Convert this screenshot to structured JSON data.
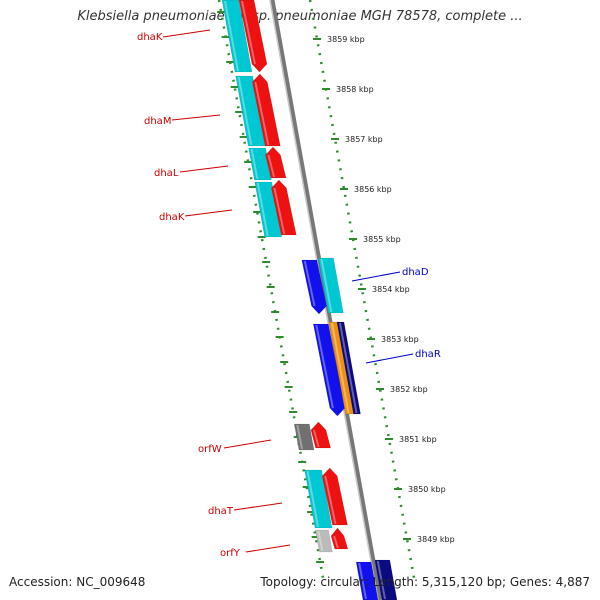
{
  "title": "Klebsiella pneumoniae subsp. pneumoniae MGH 78578, complete ...",
  "accession": "Accession: NC_009648",
  "summary": "Topology: circular; Length: 5,315,120 bp; Genes: 4,887",
  "colors": {
    "backbone": "#999999",
    "dotted_track": "#2e8b2e",
    "label_left": "#cc0000",
    "label_right": "#0000cc",
    "cyan": "#00c8d2",
    "red": "#ee1111",
    "blue": "#1111ee",
    "navy": "#0b0b80",
    "orange": "#f09010",
    "gray": "#707070",
    "light_gray": "#bbbbbb"
  },
  "scale": {
    "unit": "kbp",
    "ticks": [
      {
        "kbp": 3859,
        "label": "3859 kbp"
      },
      {
        "kbp": 3858,
        "label": "3858 kbp"
      },
      {
        "kbp": 3857,
        "label": "3857 kbp"
      },
      {
        "kbp": 3856,
        "label": "3856 kbp"
      },
      {
        "kbp": 3855,
        "label": "3855 kbp"
      },
      {
        "kbp": 3854,
        "label": "3854 kbp"
      },
      {
        "kbp": 3853,
        "label": "3853 kbp"
      },
      {
        "kbp": 3852,
        "label": "3852 kbp"
      },
      {
        "kbp": 3851,
        "label": "3851 kbp"
      },
      {
        "kbp": 3850,
        "label": "3850 kbp"
      },
      {
        "kbp": 3849,
        "label": "3849 kbp"
      }
    ]
  },
  "gene_labels": [
    {
      "name": "dhaK",
      "side": "left"
    },
    {
      "name": "dhaM",
      "side": "left"
    },
    {
      "name": "dhaL",
      "side": "left"
    },
    {
      "name": "dhaK",
      "side": "left"
    },
    {
      "name": "dhaD",
      "side": "right"
    },
    {
      "name": "dhaR",
      "side": "right"
    },
    {
      "name": "orfW",
      "side": "left"
    },
    {
      "name": "dhaT",
      "side": "left"
    },
    {
      "name": "orfY",
      "side": "left"
    }
  ]
}
